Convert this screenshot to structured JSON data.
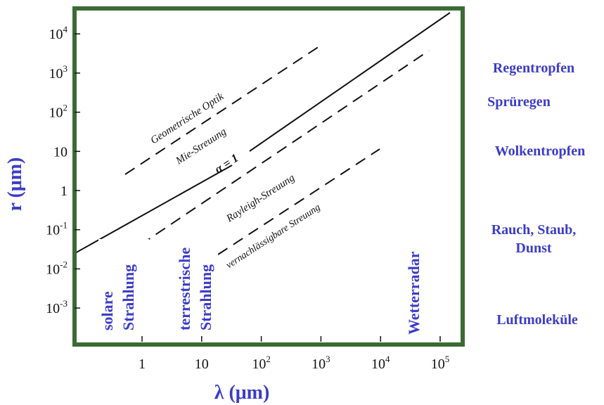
{
  "axes": {
    "x_label": "λ  (μm)",
    "y_label": "r  (μm)",
    "x_ticks": [
      {
        "value": 1,
        "base": "1",
        "exp": ""
      },
      {
        "value": 10,
        "base": "10",
        "exp": ""
      },
      {
        "value": 100,
        "base": "10",
        "exp": "2"
      },
      {
        "value": 1000,
        "base": "10",
        "exp": "3"
      },
      {
        "value": 10000,
        "base": "10",
        "exp": "4"
      },
      {
        "value": 100000,
        "base": "10",
        "exp": "5"
      }
    ],
    "y_ticks": [
      {
        "value": 10000,
        "base": "10",
        "exp": "4"
      },
      {
        "value": 1000,
        "base": "10",
        "exp": "3"
      },
      {
        "value": 100,
        "base": "10",
        "exp": "2"
      },
      {
        "value": 10,
        "base": "10",
        "exp": ""
      },
      {
        "value": 1,
        "base": "1",
        "exp": ""
      },
      {
        "value": 0.1,
        "base": "10",
        "exp": "-1"
      },
      {
        "value": 0.01,
        "base": "10",
        "exp": "-2"
      },
      {
        "value": 0.001,
        "base": "10",
        "exp": "-3"
      }
    ],
    "x_range": [
      0.1,
      300000
    ],
    "y_range": [
      0.0003,
      80000
    ],
    "scale": "log-log"
  },
  "regimes": {
    "geometric": "Geometrische Optik",
    "mie": "Mie-Streuung",
    "alpha": "α = 1",
    "rayleigh": "Rayleigh-Streuung",
    "negligible": "vernachlässigbare Streuung"
  },
  "wavelength_labels": {
    "solar": [
      "solare",
      "Strahlung"
    ],
    "terrestrial": [
      "terrestrische",
      "Strahlung"
    ],
    "radar": "Wetterradar"
  },
  "particle_labels": {
    "rain": "Regentropfen",
    "drizzle": "Sprüregen",
    "cloud": "Wolkentropfen",
    "aerosol": [
      "Rauch, Staub,",
      "Dunst"
    ],
    "molecules": "Luftmoleküle"
  },
  "colors": {
    "frame": "#3a6b35",
    "label": "#3c3cc8",
    "ink": "#111111"
  }
}
